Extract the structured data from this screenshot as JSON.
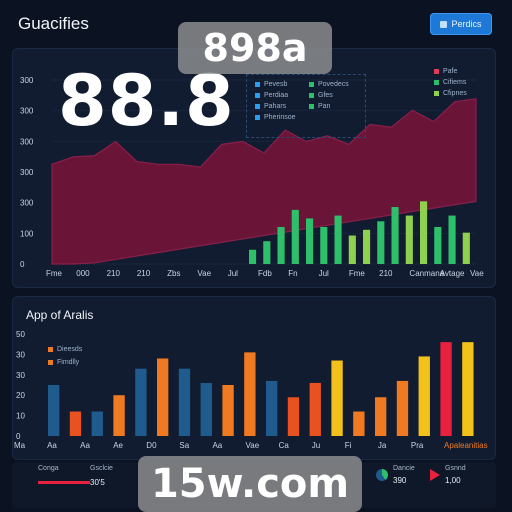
{
  "header": {
    "title": "Guacifies",
    "button_label": "Perdics"
  },
  "watermarks": {
    "top": "898a",
    "bottom": "15w.com"
  },
  "kpi": {
    "value": "88.8"
  },
  "top_panel": {
    "legend_box": [
      {
        "label": "Pevesb",
        "color": "#2a9df4"
      },
      {
        "label": "Povedecs",
        "color": "#2ebf6b"
      },
      {
        "label": "Perdiaa",
        "color": "#2a9df4"
      },
      {
        "label": "Gfes",
        "color": "#2ebf6b"
      },
      {
        "label": "Pahars",
        "color": "#2a9df4"
      },
      {
        "label": "Pan",
        "color": "#2ebf6b"
      },
      {
        "label": "Pherinsoe",
        "color": "#2a9df4"
      }
    ],
    "legend_right": [
      {
        "label": "Pafe",
        "color": "#e23b5a"
      },
      {
        "label": "Cifiems",
        "color": "#2ebf6b"
      },
      {
        "label": "Cfipnes",
        "color": "#8fd14f"
      }
    ]
  },
  "bottom_panel": {
    "title": "App of Aralis",
    "legend": [
      {
        "label": "Dieesds",
        "color": "#f07a22"
      },
      {
        "label": "Fimdlly",
        "color": "#f07a22"
      }
    ]
  },
  "chart_data": [
    {
      "type": "area",
      "y_ticks": [
        "300",
        "300",
        "300",
        "300",
        "300",
        "100",
        "0"
      ],
      "x_labels": [
        "Fme",
        "000",
        "210",
        "210",
        "Zbs",
        "Vae",
        "Jul",
        "Fdb",
        "Fn",
        "Jul",
        "Fme",
        "210",
        "Canmana",
        "Avtage",
        "Vae"
      ],
      "series": [
        {
          "color": "#6a1538",
          "values": [
            175,
            188,
            190,
            215,
            180,
            175,
            175,
            170,
            210,
            215,
            195,
            235,
            215,
            225,
            210,
            245,
            240,
            270,
            250,
            285,
            290
          ]
        },
        {
          "color": "#2ebf6b",
          "values": [
            0,
            0,
            0,
            0,
            0,
            0,
            0,
            0,
            0,
            0,
            0,
            0,
            0,
            0,
            0,
            0,
            0,
            0,
            0,
            0,
            0
          ]
        }
      ],
      "bars": [
        {
          "value": 25,
          "color": "#2ebf6b"
        },
        {
          "value": 40,
          "color": "#2ebf6b"
        },
        {
          "value": 65,
          "color": "#2ebf6b"
        },
        {
          "value": 95,
          "color": "#2ebf6b"
        },
        {
          "value": 80,
          "color": "#2ebf6b"
        },
        {
          "value": 65,
          "color": "#2ebf6b"
        },
        {
          "value": 85,
          "color": "#2ebf6b"
        },
        {
          "value": 50,
          "color": "#8fd14f"
        },
        {
          "value": 60,
          "color": "#8fd14f"
        },
        {
          "value": 75,
          "color": "#2ebf6b"
        },
        {
          "value": 100,
          "color": "#2ebf6b"
        },
        {
          "value": 85,
          "color": "#8fd14f"
        },
        {
          "value": 110,
          "color": "#8fd14f"
        },
        {
          "value": 65,
          "color": "#2ebf6b"
        },
        {
          "value": 85,
          "color": "#2ebf6b"
        },
        {
          "value": 55,
          "color": "#8fd14f"
        }
      ],
      "ylim": [
        0,
        330
      ]
    },
    {
      "type": "bar",
      "y_ticks": [
        "50",
        "30",
        "30",
        "20",
        "10",
        "0"
      ],
      "categories": [
        "Ma",
        "Aa",
        "Aa",
        "Ae",
        "D0",
        "Sa",
        "Aa",
        "Vae",
        "Ca",
        "Ju",
        "Fi",
        "Ja",
        "Pra",
        "Apaleanitias"
      ],
      "bars": [
        {
          "value": 25,
          "color": "#1f5b8c"
        },
        {
          "value": 12,
          "color": "#e8521f"
        },
        {
          "value": 12,
          "color": "#1f5b8c"
        },
        {
          "value": 20,
          "color": "#f07a22"
        },
        {
          "value": 33,
          "color": "#1f5b8c"
        },
        {
          "value": 38,
          "color": "#f07a22"
        },
        {
          "value": 33,
          "color": "#1f5b8c"
        },
        {
          "value": 26,
          "color": "#1f5b8c"
        },
        {
          "value": 25,
          "color": "#f07a22"
        },
        {
          "value": 41,
          "color": "#f07a22"
        },
        {
          "value": 27,
          "color": "#1f5b8c"
        },
        {
          "value": 19,
          "color": "#e8521f"
        },
        {
          "value": 26,
          "color": "#e8521f"
        },
        {
          "value": 37,
          "color": "#f2c21a"
        },
        {
          "value": 12,
          "color": "#f07a22"
        },
        {
          "value": 19,
          "color": "#f07a22"
        },
        {
          "value": 27,
          "color": "#f07a22"
        },
        {
          "value": 39,
          "color": "#f2c21a"
        },
        {
          "value": 46,
          "color": "#e8213f"
        },
        {
          "value": 46,
          "color": "#f2c21a"
        }
      ],
      "ylim": [
        0,
        50
      ]
    }
  ],
  "footer": {
    "items": [
      {
        "label": "Conga",
        "value": "",
        "color": "#e8213f"
      },
      {
        "label": "Gsclcie",
        "value": "30'5",
        "color": "#1f5b8c"
      },
      {
        "label": "Dancie",
        "value": "390",
        "color": "#2ebf6b"
      },
      {
        "label": "Gsnnd",
        "value": "1,00",
        "color": "#e8213f"
      }
    ]
  }
}
